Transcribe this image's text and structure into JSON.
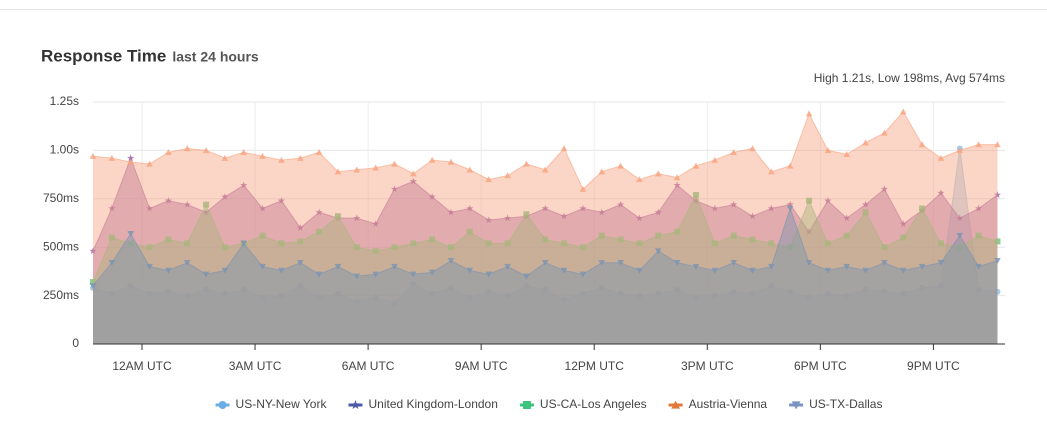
{
  "chart_data": {
    "type": "area",
    "title": "Response Time",
    "subtitle": "last 24 hours",
    "summary": "High 1.21s, Low 198ms, Avg 574ms",
    "x": [
      -1.3,
      -0.8,
      -0.3,
      0.2,
      0.7,
      1.2,
      1.7,
      2.2,
      2.7,
      3.2,
      3.7,
      4.2,
      4.7,
      5.2,
      5.7,
      6.2,
      6.7,
      7.2,
      7.7,
      8.2,
      8.7,
      9.2,
      9.7,
      10.2,
      10.7,
      11.2,
      11.7,
      12.2,
      12.7,
      13.2,
      13.7,
      14.2,
      14.7,
      15.2,
      15.7,
      16.2,
      16.7,
      17.2,
      17.7,
      18.2,
      18.7,
      19.2,
      19.7,
      20.2,
      20.7,
      21.2,
      21.7,
      22.2,
      22.7
    ],
    "xlim": [
      -1.3,
      22.9
    ],
    "xticks": [
      {
        "value": 0,
        "label": "12AM UTC"
      },
      {
        "value": 3,
        "label": "3AM UTC"
      },
      {
        "value": 6,
        "label": "6AM UTC"
      },
      {
        "value": 9,
        "label": "9AM UTC"
      },
      {
        "value": 12,
        "label": "12PM UTC"
      },
      {
        "value": 15,
        "label": "3PM UTC"
      },
      {
        "value": 18,
        "label": "6PM UTC"
      },
      {
        "value": 21,
        "label": "9PM UTC"
      }
    ],
    "ylim": [
      0,
      1250
    ],
    "yticks": [
      0,
      {
        "value": 250,
        "label": "250ms"
      },
      {
        "value": 500,
        "label": "500ms"
      },
      {
        "value": 750,
        "label": "750ms"
      },
      {
        "value": 1000,
        "label": "1.00s"
      },
      {
        "value": 1250,
        "label": "1.25s"
      }
    ],
    "grid": true,
    "series": [
      {
        "name": "US-NY-New York",
        "color": "#6aaee6",
        "fill": "#8fbfe0",
        "marker": "circle",
        "values": [
          290,
          260,
          300,
          260,
          270,
          250,
          280,
          260,
          280,
          240,
          250,
          300,
          240,
          260,
          220,
          240,
          210,
          310,
          260,
          290,
          240,
          270,
          250,
          300,
          280,
          230,
          260,
          290,
          260,
          250,
          260,
          280,
          240,
          250,
          270,
          260,
          300,
          270,
          240,
          260,
          250,
          280,
          270,
          260,
          290,
          300,
          1010,
          280,
          270
        ]
      },
      {
        "name": "United Kingdom-London",
        "color": "#4b5aa6",
        "fill": "#9c5ca8",
        "marker": "star",
        "values": [
          480,
          700,
          960,
          700,
          740,
          720,
          680,
          760,
          820,
          700,
          740,
          600,
          680,
          650,
          650,
          620,
          800,
          840,
          760,
          680,
          700,
          640,
          650,
          660,
          700,
          660,
          700,
          680,
          720,
          650,
          680,
          820,
          740,
          700,
          720,
          660,
          700,
          720,
          580,
          740,
          650,
          720,
          800,
          620,
          690,
          780,
          650,
          700,
          770
        ]
      },
      {
        "name": "US-CA-Los Angeles",
        "color": "#3cc47c",
        "fill": "#6cc47c",
        "marker": "square",
        "values": [
          320,
          550,
          520,
          500,
          540,
          520,
          720,
          500,
          520,
          560,
          520,
          530,
          580,
          660,
          500,
          480,
          500,
          520,
          540,
          500,
          580,
          520,
          520,
          670,
          540,
          520,
          500,
          560,
          540,
          520,
          560,
          580,
          770,
          520,
          560,
          540,
          520,
          500,
          740,
          520,
          560,
          680,
          500,
          550,
          700,
          520,
          500,
          560,
          530
        ]
      },
      {
        "name": "Austria-Vienna",
        "color": "#e07a3a",
        "fill": "#f7a27e",
        "marker": "triangle",
        "values": [
          970,
          960,
          940,
          930,
          990,
          1010,
          1000,
          960,
          990,
          970,
          950,
          960,
          990,
          890,
          900,
          910,
          930,
          880,
          950,
          940,
          900,
          850,
          870,
          930,
          900,
          1010,
          800,
          890,
          920,
          850,
          880,
          860,
          920,
          950,
          990,
          1010,
          890,
          920,
          1190,
          1000,
          980,
          1040,
          1090,
          1200,
          1030,
          960,
          1000,
          1030,
          1030
        ]
      },
      {
        "name": "US-TX-Dallas",
        "color": "#7a93c0",
        "fill": "#7a93b0",
        "marker": "triangle-down",
        "values": [
          300,
          420,
          570,
          400,
          380,
          420,
          360,
          380,
          520,
          400,
          380,
          420,
          360,
          400,
          350,
          360,
          400,
          360,
          370,
          430,
          380,
          360,
          400,
          350,
          420,
          380,
          360,
          420,
          420,
          380,
          480,
          420,
          400,
          380,
          420,
          380,
          400,
          700,
          420,
          380,
          400,
          380,
          420,
          380,
          400,
          420,
          560,
          400,
          430
        ]
      }
    ]
  }
}
